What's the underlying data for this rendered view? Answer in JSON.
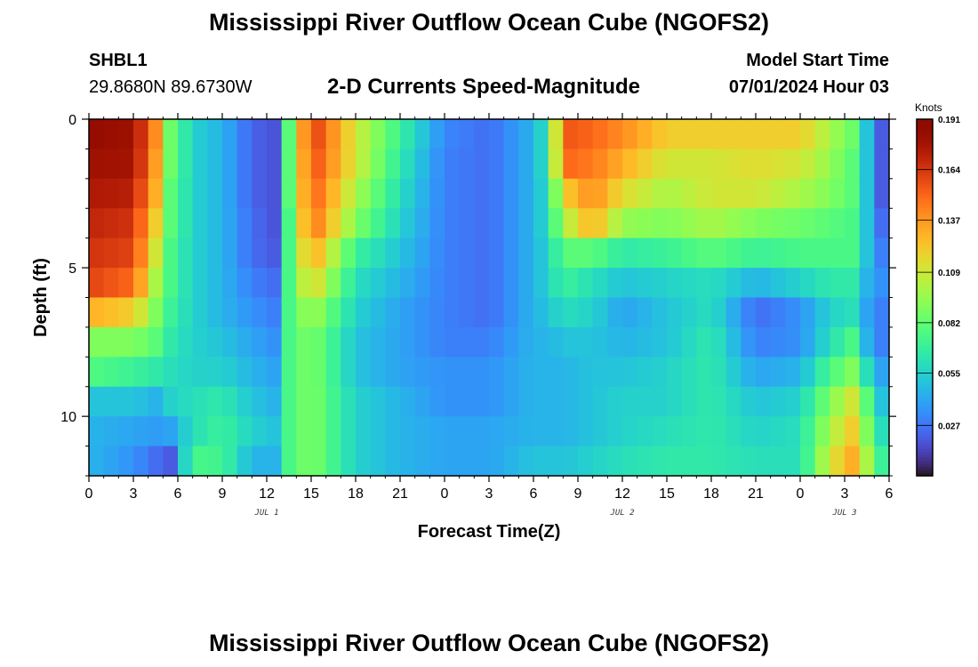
{
  "header": {
    "title": "Mississippi River Outflow Ocean Cube (NGOFS2)",
    "station": "SHBL1",
    "coordinates": "29.8680N  89.6730W",
    "subtitle": "2-D Currents Speed-Magnitude",
    "model_start_label": "Model Start Time",
    "model_start_value": "07/01/2024 Hour 03"
  },
  "footer": {
    "title": "Mississippi River Outflow Ocean Cube (NGOFS2)"
  },
  "chart_data": {
    "type": "heatmap",
    "title": "2-D Currents Speed-Magnitude",
    "xlabel": "Forecast Time(Z)",
    "ylabel": "Depth (ft)",
    "x_tick_labels": [
      "0",
      "3",
      "6",
      "9",
      "12",
      "15",
      "18",
      "21",
      "0",
      "3",
      "6",
      "9",
      "12",
      "15",
      "18",
      "21",
      "0",
      "3",
      "6"
    ],
    "x_range_hours": [
      0,
      54
    ],
    "day_labels": [
      {
        "text": "JUL 1",
        "hour": 12
      },
      {
        "text": "JUL 2",
        "hour": 36
      },
      {
        "text": "JUL 3",
        "hour": 51
      }
    ],
    "y_tick_labels": [
      "0",
      "5",
      "10"
    ],
    "y_range_ft": [
      0,
      12
    ],
    "y_inverted": true,
    "colorbar": {
      "unit": "Knots",
      "tick_labels": [
        "0.191",
        "0.164",
        "0.137",
        "0.109",
        "0.082",
        "0.055",
        "0.027"
      ],
      "range": [
        0,
        0.191
      ],
      "colormap": "turbo"
    },
    "grid": {
      "x_step_hours": 1,
      "depth_layers_ft": [
        0.5,
        1.5,
        2.5,
        3.5,
        4.5,
        5.5,
        6.5,
        7.5,
        8.5,
        9.5,
        10.5,
        11.5
      ]
    },
    "speed_keyframes": [
      {
        "hour": 0,
        "values": [
          0.185,
          0.18,
          0.175,
          0.17,
          0.165,
          0.16,
          0.13,
          0.09,
          0.078,
          0.05,
          0.045,
          0.045
        ]
      },
      {
        "hour": 3,
        "values": [
          0.18,
          0.178,
          0.172,
          0.165,
          0.16,
          0.15,
          0.12,
          0.09,
          0.07,
          0.05,
          0.04,
          0.035
        ]
      },
      {
        "hour": 4.5,
        "values": [
          0.14,
          0.135,
          0.13,
          0.12,
          0.11,
          0.1,
          0.09,
          0.08,
          0.065,
          0.045,
          0.038,
          0.025
        ]
      },
      {
        "hour": 5.5,
        "values": [
          0.085,
          0.085,
          0.08,
          0.08,
          0.075,
          0.075,
          0.07,
          0.065,
          0.06,
          0.055,
          0.04,
          0.02
        ]
      },
      {
        "hour": 7,
        "values": [
          0.055,
          0.055,
          0.055,
          0.055,
          0.055,
          0.055,
          0.055,
          0.055,
          0.055,
          0.06,
          0.06,
          0.075
        ]
      },
      {
        "hour": 9,
        "values": [
          0.045,
          0.045,
          0.045,
          0.045,
          0.045,
          0.045,
          0.045,
          0.05,
          0.055,
          0.065,
          0.07,
          0.072
        ]
      },
      {
        "hour": 11,
        "values": [
          0.022,
          0.022,
          0.022,
          0.025,
          0.025,
          0.03,
          0.035,
          0.04,
          0.045,
          0.05,
          0.055,
          0.045
        ]
      },
      {
        "hour": 12.5,
        "values": [
          0.018,
          0.018,
          0.018,
          0.018,
          0.02,
          0.025,
          0.03,
          0.035,
          0.04,
          0.045,
          0.05,
          0.045
        ]
      },
      {
        "hour": 13.5,
        "values": [
          0.08,
          0.08,
          0.08,
          0.075,
          0.075,
          0.075,
          0.075,
          0.075,
          0.075,
          0.075,
          0.075,
          0.075
        ]
      },
      {
        "hour": 15,
        "values": [
          0.165,
          0.16,
          0.155,
          0.15,
          0.135,
          0.12,
          0.1,
          0.09,
          0.09,
          0.09,
          0.09,
          0.09
        ]
      },
      {
        "hour": 18,
        "values": [
          0.11,
          0.11,
          0.1,
          0.09,
          0.07,
          0.06,
          0.055,
          0.05,
          0.05,
          0.055,
          0.055,
          0.055
        ]
      },
      {
        "hour": 21,
        "values": [
          0.07,
          0.065,
          0.06,
          0.055,
          0.05,
          0.045,
          0.04,
          0.04,
          0.04,
          0.045,
          0.045,
          0.045
        ]
      },
      {
        "hour": 24,
        "values": [
          0.032,
          0.03,
          0.03,
          0.03,
          0.03,
          0.03,
          0.03,
          0.03,
          0.035,
          0.035,
          0.04,
          0.04
        ]
      },
      {
        "hour": 27,
        "values": [
          0.025,
          0.025,
          0.025,
          0.025,
          0.025,
          0.025,
          0.025,
          0.03,
          0.035,
          0.035,
          0.04,
          0.04
        ]
      },
      {
        "hour": 30,
        "values": [
          0.045,
          0.045,
          0.045,
          0.045,
          0.045,
          0.045,
          0.045,
          0.045,
          0.045,
          0.045,
          0.045,
          0.05
        ]
      },
      {
        "hour": 31,
        "values": [
          0.065,
          0.065,
          0.06,
          0.06,
          0.055,
          0.055,
          0.05,
          0.045,
          0.045,
          0.045,
          0.045,
          0.05
        ]
      },
      {
        "hour": 32,
        "values": [
          0.155,
          0.15,
          0.12,
          0.1,
          0.08,
          0.07,
          0.06,
          0.05,
          0.045,
          0.045,
          0.045,
          0.05
        ]
      },
      {
        "hour": 34,
        "values": [
          0.15,
          0.145,
          0.14,
          0.13,
          0.08,
          0.06,
          0.055,
          0.05,
          0.05,
          0.05,
          0.05,
          0.055
        ]
      },
      {
        "hour": 36,
        "values": [
          0.14,
          0.13,
          0.115,
          0.095,
          0.065,
          0.05,
          0.04,
          0.045,
          0.05,
          0.055,
          0.055,
          0.06
        ]
      },
      {
        "hour": 39,
        "values": [
          0.12,
          0.11,
          0.1,
          0.09,
          0.07,
          0.055,
          0.05,
          0.05,
          0.055,
          0.055,
          0.06,
          0.065
        ]
      },
      {
        "hour": 42,
        "values": [
          0.12,
          0.11,
          0.11,
          0.1,
          0.08,
          0.06,
          0.06,
          0.065,
          0.065,
          0.065,
          0.065,
          0.065
        ]
      },
      {
        "hour": 45,
        "values": [
          0.12,
          0.115,
          0.11,
          0.09,
          0.07,
          0.045,
          0.025,
          0.03,
          0.04,
          0.05,
          0.055,
          0.06
        ]
      },
      {
        "hour": 48,
        "values": [
          0.12,
          0.11,
          0.1,
          0.085,
          0.075,
          0.055,
          0.035,
          0.035,
          0.045,
          0.055,
          0.06,
          0.06
        ]
      },
      {
        "hour": 50,
        "values": [
          0.1,
          0.095,
          0.09,
          0.08,
          0.075,
          0.065,
          0.055,
          0.06,
          0.075,
          0.09,
          0.1,
          0.11
        ]
      },
      {
        "hour": 51.5,
        "values": [
          0.085,
          0.08,
          0.08,
          0.075,
          0.075,
          0.065,
          0.06,
          0.075,
          0.09,
          0.11,
          0.12,
          0.13
        ]
      },
      {
        "hour": 52.5,
        "values": [
          0.05,
          0.05,
          0.05,
          0.05,
          0.05,
          0.045,
          0.04,
          0.045,
          0.06,
          0.08,
          0.09,
          0.1
        ]
      },
      {
        "hour": 53.5,
        "values": [
          0.02,
          0.02,
          0.02,
          0.025,
          0.03,
          0.035,
          0.03,
          0.03,
          0.04,
          0.05,
          0.06,
          0.07
        ]
      },
      {
        "hour": 54,
        "values": [
          0.01,
          0.01,
          0.015,
          0.02,
          0.025,
          0.03,
          0.03,
          0.03,
          0.035,
          0.045,
          0.055,
          0.065
        ]
      }
    ]
  }
}
